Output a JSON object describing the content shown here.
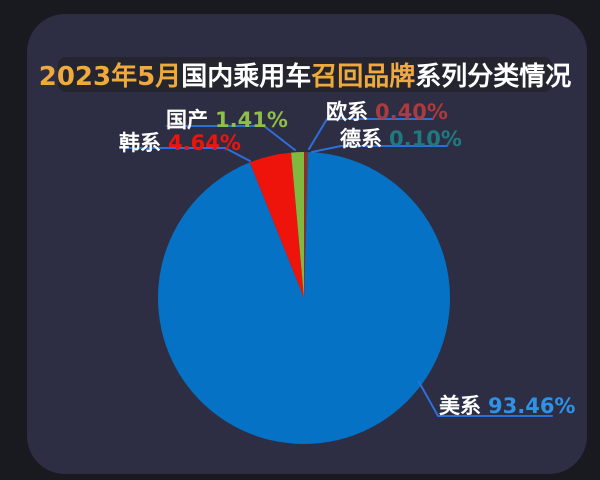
{
  "title": {
    "part1": "2023年5月",
    "part2": "国内乘用车",
    "part3": "召回品牌",
    "part4": "系列分类情况",
    "accent_color": "#f0a93c",
    "text_color": "#ffffff"
  },
  "chart_data": {
    "type": "pie",
    "title": "2023年5月国内乘用车召回品牌系列分类情况",
    "start_angle_deg": 0,
    "direction": "clockwise",
    "legend_position": "outside-callouts",
    "slices": [
      {
        "label": "欧系",
        "value": 0.4,
        "display": "0.40%",
        "slice_color": "#8f2a2e",
        "value_color": "#ac3a3e"
      },
      {
        "label": "德系",
        "value": 0.1,
        "display": "0.10%",
        "slice_color": "#1d7076",
        "value_color": "#1f7a80"
      },
      {
        "label": "美系",
        "value": 93.46,
        "display": "93.46%",
        "slice_color": "#0672c5",
        "value_color": "#2d93e8"
      },
      {
        "label": "韩系",
        "value": 4.64,
        "display": "4.64%",
        "slice_color": "#ee130b",
        "value_color": "#ee130b"
      },
      {
        "label": "国产",
        "value": 1.41,
        "display": "1.41%",
        "slice_color": "#81b83f",
        "value_color": "#8fbe4b"
      }
    ],
    "leader_line_color": "#2d6fd9",
    "label_text_color": "#ffffff"
  },
  "colors": {
    "page_background": "#191a20",
    "card_background": "#2d2e43",
    "title_box_background": "#24252f"
  }
}
